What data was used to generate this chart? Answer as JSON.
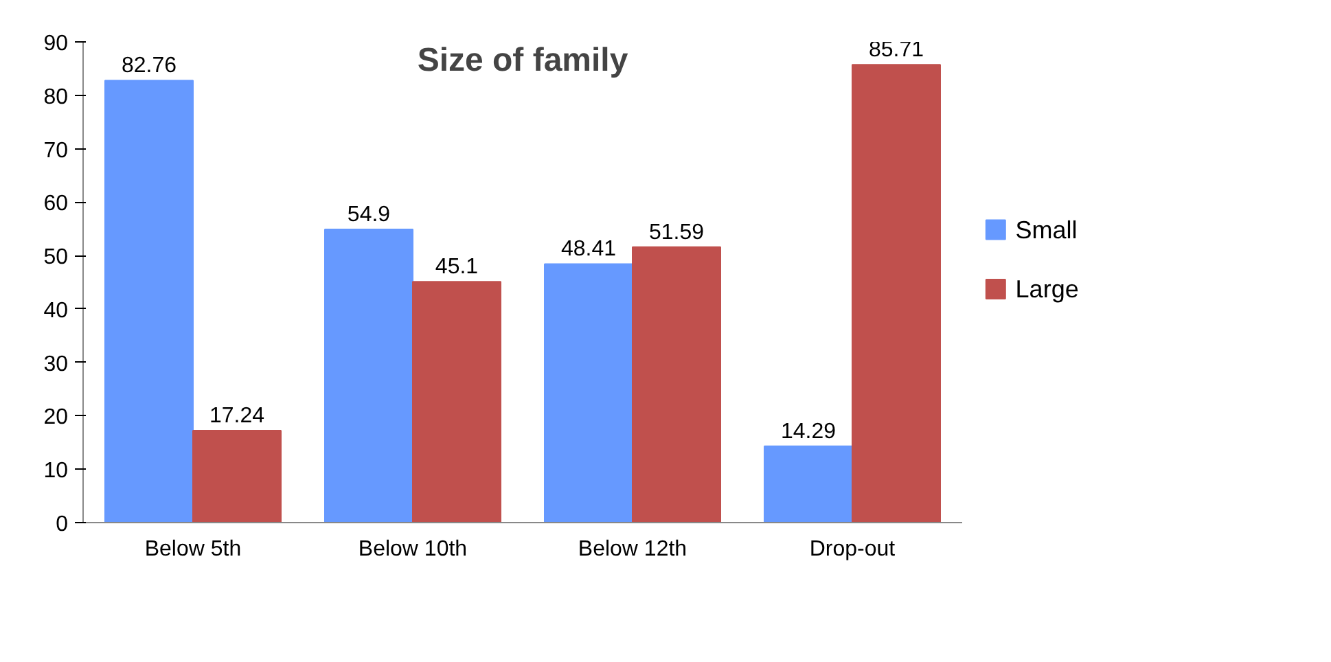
{
  "chart_data": {
    "type": "bar",
    "title": "Size of family",
    "categories": [
      "Below 5th",
      "Below 10th",
      "Below 12th",
      "Drop-out"
    ],
    "series": [
      {
        "name": "Small",
        "color": "#6699ff",
        "values": [
          82.76,
          54.9,
          48.41,
          14.29
        ]
      },
      {
        "name": "Large",
        "color": "#c0504d",
        "values": [
          17.24,
          45.1,
          51.59,
          85.71
        ]
      }
    ],
    "ylim": [
      0,
      90
    ],
    "yticks": [
      0,
      10,
      20,
      30,
      40,
      50,
      60,
      70,
      80,
      90
    ],
    "grid": false,
    "legend": "right",
    "data_labels": true
  }
}
